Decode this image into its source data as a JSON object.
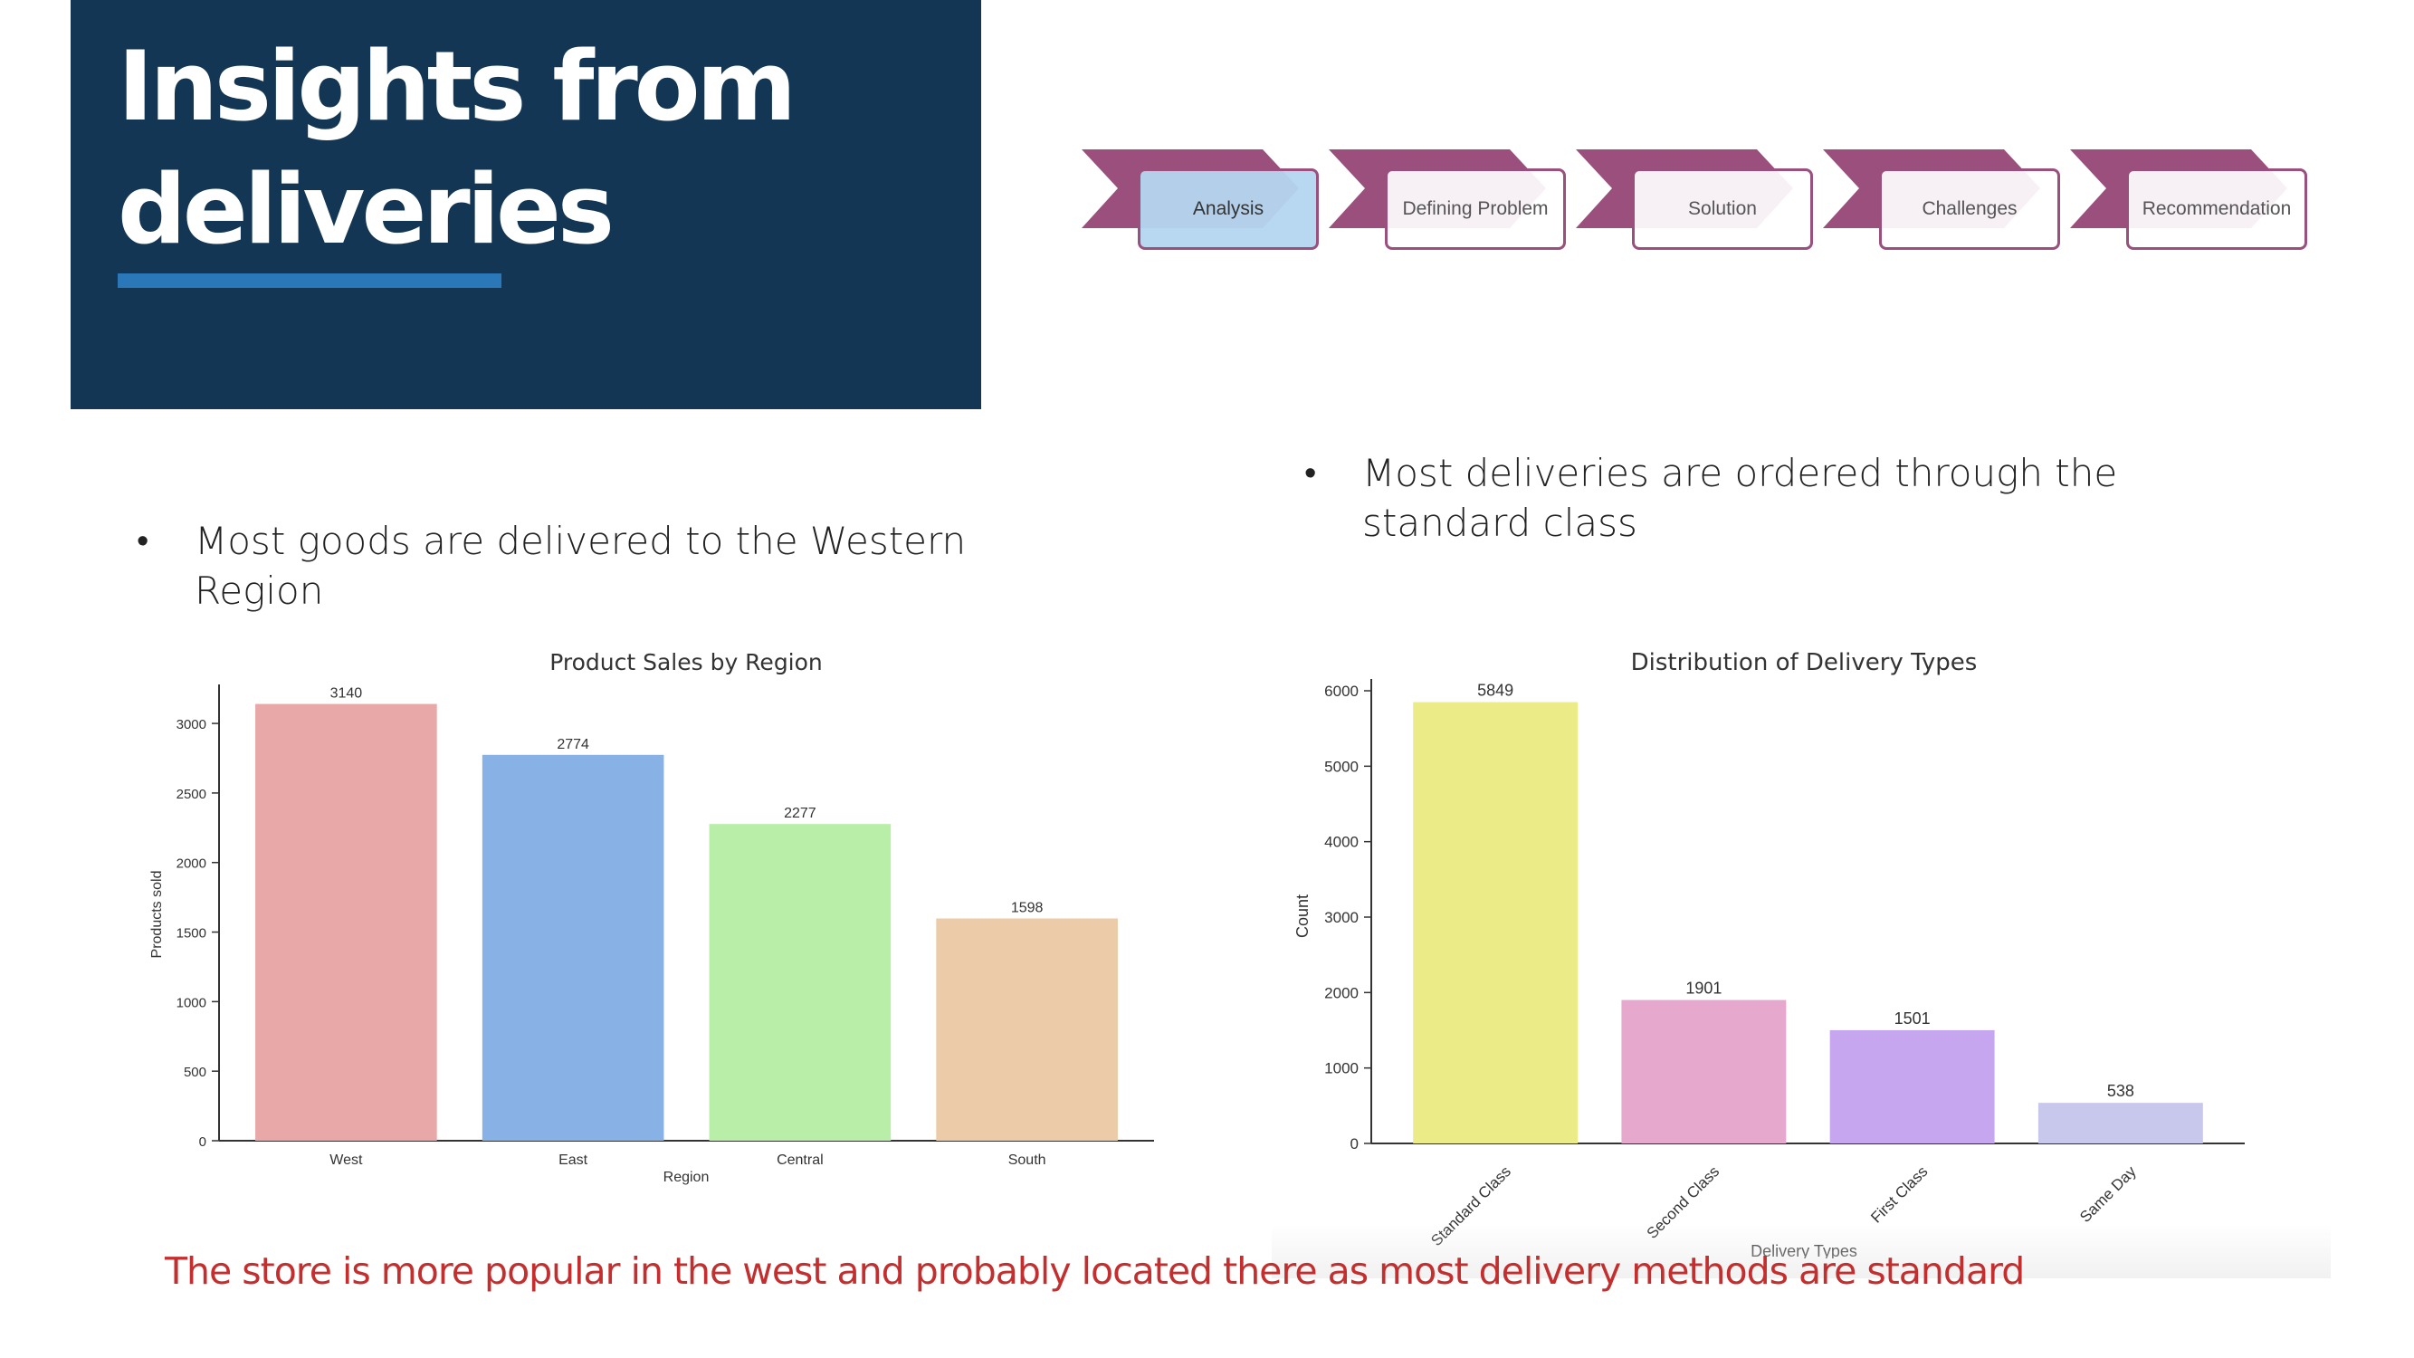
{
  "title": {
    "line1": "Insights from",
    "line2": "deliveries"
  },
  "process": {
    "steps": [
      {
        "label": "Analysis",
        "active": true
      },
      {
        "label": "Defining Problem",
        "active": false
      },
      {
        "label": "Solution",
        "active": false
      },
      {
        "label": "Challenges",
        "active": false
      },
      {
        "label": "Recommendation",
        "active": false
      }
    ],
    "accent_color": "#9a4f7c"
  },
  "bullets": {
    "left": "Most goods are delivered to the Western Region",
    "right": "Most deliveries are ordered through the standard class"
  },
  "conclusion": "The store is more popular in the west and probably located there as most delivery methods are standard",
  "chart_data": [
    {
      "type": "bar",
      "title": "Product Sales by Region",
      "xlabel": "Region",
      "ylabel": "Products sold",
      "categories": [
        "West",
        "East",
        "Central",
        "South"
      ],
      "values": [
        3140,
        2774,
        2277,
        1598
      ],
      "colors": [
        "#e8a8a8",
        "#88b2e6",
        "#b8eea8",
        "#eccca8"
      ],
      "ylim": [
        0,
        3300
      ],
      "yticks": [
        0,
        500,
        1000,
        1500,
        2000,
        2500,
        3000
      ],
      "grid": false
    },
    {
      "type": "bar",
      "title": "Distribution of Delivery Types",
      "xlabel": "Delivery Types",
      "ylabel": "Count",
      "categories": [
        "Standard Class",
        "Second Class",
        "First Class",
        "Same Day"
      ],
      "values": [
        5849,
        1901,
        1501,
        538
      ],
      "colors": [
        "#ebeb88",
        "#e6a8cc",
        "#c6a6ee",
        "#c8c8ec"
      ],
      "ylim": [
        0,
        6000
      ],
      "yticks": [
        0,
        1000,
        2000,
        3000,
        4000,
        5000,
        6000
      ],
      "grid": false
    }
  ]
}
